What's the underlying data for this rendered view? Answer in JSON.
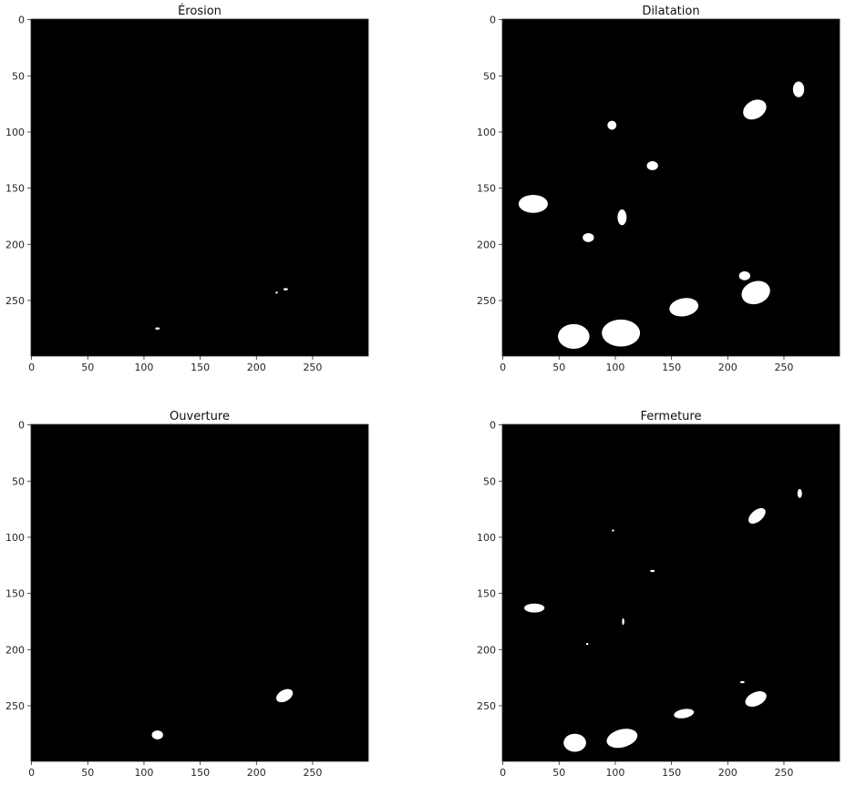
{
  "figure": {
    "background": "#ffffff",
    "image_background": "#000000",
    "foreground": "#ffffff",
    "axis_color": "#262626",
    "x_ticks": [
      0,
      50,
      100,
      150,
      200,
      250
    ],
    "y_ticks": [
      0,
      50,
      100,
      150,
      200,
      250
    ],
    "x_range": [
      -0.5,
      299.5
    ],
    "y_range": [
      -0.5,
      299.5
    ],
    "y_inverted": true,
    "panels": [
      {
        "title": "Érosion",
        "blobs": [
          {
            "x": 112,
            "y": 275,
            "rx": 2,
            "ry": 1
          },
          {
            "x": 226,
            "y": 240,
            "rx": 2,
            "ry": 1
          },
          {
            "x": 218,
            "y": 243,
            "rx": 1,
            "ry": 1
          }
        ]
      },
      {
        "title": "Dilatation",
        "blobs": [
          {
            "x": 224,
            "y": 80,
            "rx": 11,
            "ry": 8,
            "rot": -30
          },
          {
            "x": 263,
            "y": 62,
            "rx": 5,
            "ry": 7
          },
          {
            "x": 97,
            "y": 94,
            "rx": 4,
            "ry": 4
          },
          {
            "x": 133,
            "y": 130,
            "rx": 5,
            "ry": 4
          },
          {
            "x": 27,
            "y": 164,
            "rx": 13,
            "ry": 8
          },
          {
            "x": 106,
            "y": 176,
            "rx": 4,
            "ry": 7
          },
          {
            "x": 76,
            "y": 194,
            "rx": 5,
            "ry": 4
          },
          {
            "x": 215,
            "y": 228,
            "rx": 5,
            "ry": 4
          },
          {
            "x": 225,
            "y": 243,
            "rx": 13,
            "ry": 10,
            "rot": -20
          },
          {
            "x": 161,
            "y": 256,
            "rx": 13,
            "ry": 8,
            "rot": -10
          },
          {
            "x": 63,
            "y": 282,
            "rx": 14,
            "ry": 11
          },
          {
            "x": 105,
            "y": 279,
            "rx": 17,
            "ry": 12
          }
        ]
      },
      {
        "title": "Ouverture",
        "blobs": [
          {
            "x": 112,
            "y": 276,
            "rx": 5,
            "ry": 4
          },
          {
            "x": 225,
            "y": 241,
            "rx": 8,
            "ry": 5,
            "rot": -30
          }
        ]
      },
      {
        "title": "Fermeture",
        "blobs": [
          {
            "x": 226,
            "y": 81,
            "rx": 9,
            "ry": 5,
            "rot": -40
          },
          {
            "x": 264,
            "y": 61,
            "rx": 2,
            "ry": 4
          },
          {
            "x": 98,
            "y": 94,
            "rx": 1,
            "ry": 1
          },
          {
            "x": 133,
            "y": 130,
            "rx": 2,
            "ry": 1
          },
          {
            "x": 28,
            "y": 163,
            "rx": 9,
            "ry": 4
          },
          {
            "x": 107,
            "y": 175,
            "rx": 1,
            "ry": 3
          },
          {
            "x": 75,
            "y": 195,
            "rx": 1,
            "ry": 1
          },
          {
            "x": 213,
            "y": 229,
            "rx": 2,
            "ry": 1
          },
          {
            "x": 225,
            "y": 244,
            "rx": 10,
            "ry": 6,
            "rot": -25
          },
          {
            "x": 161,
            "y": 257,
            "rx": 9,
            "ry": 4,
            "rot": -10
          },
          {
            "x": 64,
            "y": 283,
            "rx": 10,
            "ry": 8
          },
          {
            "x": 106,
            "y": 279,
            "rx": 14,
            "ry": 8,
            "rot": -15
          }
        ]
      }
    ]
  }
}
